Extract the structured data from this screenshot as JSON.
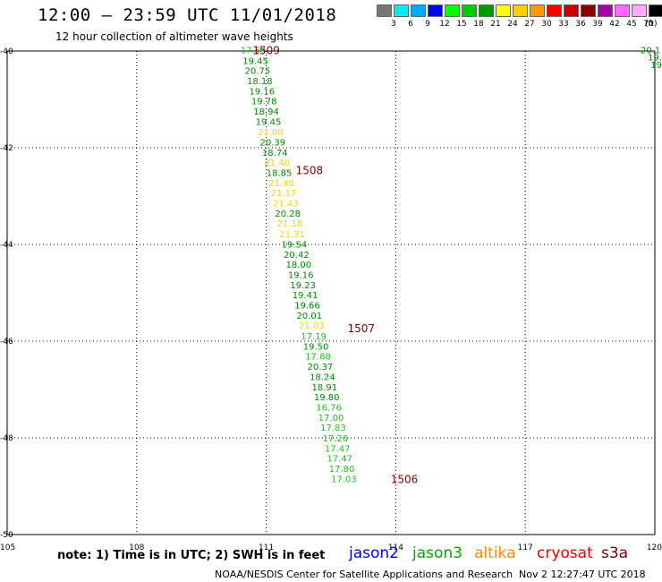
{
  "title": "12:00 – 23:59 UTC 11/01/2018",
  "subtitle": "12 hour collection of altimeter wave heights",
  "note": "note: 1) Time is in UTC; 2) SWH is in feet",
  "credit": "NOAA/NESDIS Center for Satellite Applications and Research",
  "timestamp": "Nov  2 12:27:47 UTC 2018",
  "satellites": [
    {
      "name": "jason2",
      "color": "#0000ee"
    },
    {
      "name": "jason3",
      "color": "#00aa00"
    },
    {
      "name": "altika",
      "color": "#ff8800"
    },
    {
      "name": "cryosat",
      "color": "#ee0000"
    },
    {
      "name": "s3a",
      "color": "#800000"
    }
  ],
  "color_scale": {
    "unit": "(ft)",
    "labels": [
      "3",
      "6",
      "9",
      "12",
      "15",
      "18",
      "21",
      "24",
      "27",
      "30",
      "33",
      "36",
      "39",
      "42",
      "45",
      "70"
    ],
    "colors": [
      "#777777",
      "#00eeee",
      "#00aaff",
      "#0000ff",
      "#00ff00",
      "#00cc00",
      "#009900",
      "#ffff00",
      "#ffcc00",
      "#ff9900",
      "#ff0000",
      "#cc0000",
      "#880000",
      "#aa00aa",
      "#ff66ff",
      "#ffaaff",
      "#000000"
    ]
  },
  "chart_data": {
    "type": "scatter",
    "title": "12:00 – 23:59 UTC 11/01/2018",
    "subtitle": "12 hour collection of altimeter wave heights",
    "xlabel": "",
    "ylabel": "",
    "xlim": [
      105,
      120
    ],
    "ylim": [
      -50,
      -40
    ],
    "x_ticks": [
      "105",
      "108",
      "111",
      "114",
      "117",
      "120"
    ],
    "y_ticks": [
      "-40",
      "-42",
      "-44",
      "-46",
      "-48",
      "-50"
    ],
    "grid": "dotted",
    "points": [
      {
        "lon": 110.7,
        "lat": -39.97,
        "swh": "17.64"
      },
      {
        "lon": 110.75,
        "lat": -40.19,
        "swh": "19.45"
      },
      {
        "lon": 110.8,
        "lat": -40.4,
        "swh": "20.75"
      },
      {
        "lon": 110.85,
        "lat": -40.61,
        "swh": "18.18"
      },
      {
        "lon": 110.9,
        "lat": -40.82,
        "swh": "19.16"
      },
      {
        "lon": 110.95,
        "lat": -41.03,
        "swh": "19.78"
      },
      {
        "lon": 111.0,
        "lat": -41.24,
        "swh": "18.94"
      },
      {
        "lon": 111.05,
        "lat": -41.45,
        "swh": "19.45"
      },
      {
        "lon": 111.1,
        "lat": -41.67,
        "swh": "21.08"
      },
      {
        "lon": 111.15,
        "lat": -41.88,
        "swh": "20.39"
      },
      {
        "lon": 111.2,
        "lat": -42.09,
        "swh": "18.74"
      },
      {
        "lon": 111.25,
        "lat": -42.3,
        "swh": "21.40"
      },
      {
        "lon": 111.3,
        "lat": -42.51,
        "swh": "18.85"
      },
      {
        "lon": 111.35,
        "lat": -42.72,
        "swh": "21.40"
      },
      {
        "lon": 111.4,
        "lat": -42.93,
        "swh": "21.17"
      },
      {
        "lon": 111.45,
        "lat": -43.14,
        "swh": "21.43"
      },
      {
        "lon": 111.5,
        "lat": -43.35,
        "swh": "20.28"
      },
      {
        "lon": 111.55,
        "lat": -43.56,
        "swh": "21.18"
      },
      {
        "lon": 111.6,
        "lat": -43.78,
        "swh": "21.31"
      },
      {
        "lon": 111.65,
        "lat": -43.99,
        "swh": "19.54"
      },
      {
        "lon": 111.7,
        "lat": -44.2,
        "swh": "20.42"
      },
      {
        "lon": 111.75,
        "lat": -44.41,
        "swh": "18.00"
      },
      {
        "lon": 111.8,
        "lat": -44.62,
        "swh": "19.16"
      },
      {
        "lon": 111.85,
        "lat": -44.83,
        "swh": "19.23"
      },
      {
        "lon": 111.9,
        "lat": -45.04,
        "swh": "19.41"
      },
      {
        "lon": 111.95,
        "lat": -45.25,
        "swh": "19.66"
      },
      {
        "lon": 112.0,
        "lat": -45.46,
        "swh": "20.01"
      },
      {
        "lon": 112.05,
        "lat": -45.67,
        "swh": "21.03"
      },
      {
        "lon": 112.1,
        "lat": -45.89,
        "swh": "17.19"
      },
      {
        "lon": 112.15,
        "lat": -46.1,
        "swh": "19.50"
      },
      {
        "lon": 112.2,
        "lat": -46.31,
        "swh": "17.88"
      },
      {
        "lon": 112.25,
        "lat": -46.52,
        "swh": "20.37"
      },
      {
        "lon": 112.3,
        "lat": -46.73,
        "swh": "18.24"
      },
      {
        "lon": 112.35,
        "lat": -46.94,
        "swh": "18.91"
      },
      {
        "lon": 112.4,
        "lat": -47.15,
        "swh": "19.80"
      },
      {
        "lon": 112.45,
        "lat": -47.36,
        "swh": "16.76"
      },
      {
        "lon": 112.5,
        "lat": -47.57,
        "swh": "17.00"
      },
      {
        "lon": 112.55,
        "lat": -47.78,
        "swh": "17.83"
      },
      {
        "lon": 112.6,
        "lat": -48.0,
        "swh": "17.26"
      },
      {
        "lon": 112.65,
        "lat": -48.21,
        "swh": "17.47"
      },
      {
        "lon": 112.7,
        "lat": -48.42,
        "swh": "17.47"
      },
      {
        "lon": 112.75,
        "lat": -48.63,
        "swh": "17.80"
      },
      {
        "lon": 112.8,
        "lat": -48.84,
        "swh": "17.03"
      },
      {
        "lon": 119.9,
        "lat": -39.97,
        "swh": "20.1"
      },
      {
        "lon": 120.0,
        "lat": -40.12,
        "swh": "19."
      },
      {
        "lon": 120.0,
        "lat": -40.28,
        "swh": "19"
      }
    ],
    "times": [
      {
        "lon": 111.0,
        "lat": -39.97,
        "label": "1509"
      },
      {
        "lon": 112.0,
        "lat": -42.45,
        "label": "1508"
      },
      {
        "lon": 113.2,
        "lat": -45.72,
        "label": "1507"
      },
      {
        "lon": 114.2,
        "lat": -48.84,
        "label": "1506"
      }
    ]
  }
}
